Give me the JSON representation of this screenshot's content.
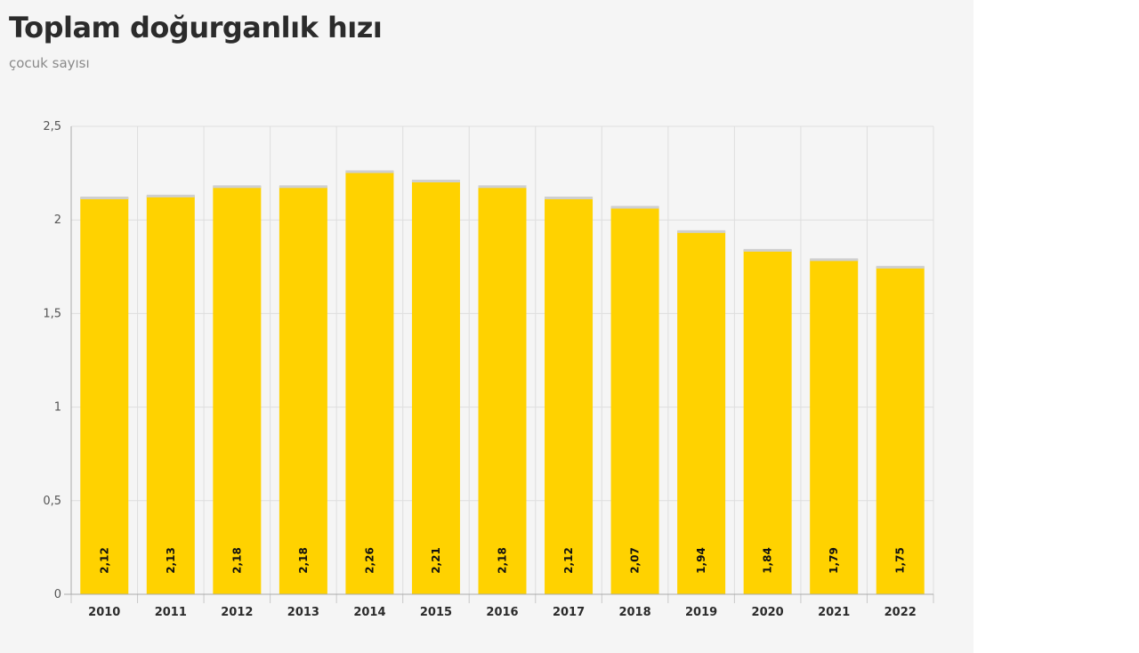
{
  "header": {
    "title": "Toplam doğurganlık hızı",
    "subtitle": "çocuk sayısı"
  },
  "chart_data": {
    "type": "bar",
    "title": "Toplam doğurganlık hızı",
    "subtitle": "çocuk sayısı",
    "xlabel": "",
    "ylabel": "",
    "categories": [
      "2010",
      "2011",
      "2012",
      "2013",
      "2014",
      "2015",
      "2016",
      "2017",
      "2018",
      "2019",
      "2020",
      "2021",
      "2022"
    ],
    "values": [
      2.12,
      2.13,
      2.18,
      2.18,
      2.26,
      2.21,
      2.18,
      2.12,
      2.07,
      1.94,
      1.84,
      1.79,
      1.75
    ],
    "data_labels": [
      "2,12",
      "2,13",
      "2,18",
      "2,18",
      "2,26",
      "2,21",
      "2,18",
      "2,12",
      "2,07",
      "1,94",
      "1,84",
      "1,79",
      "1,75"
    ],
    "ylim": [
      0,
      2.5
    ],
    "yticks": [
      0,
      0.5,
      1,
      1.5,
      2,
      2.5
    ],
    "ytick_labels": [
      "0",
      "0,5",
      "1",
      "1,5",
      "2",
      "2,5"
    ],
    "grid": true,
    "legend": "none",
    "bar_color": "#ffd200",
    "bar_cap_color": "#cfcfcf"
  }
}
